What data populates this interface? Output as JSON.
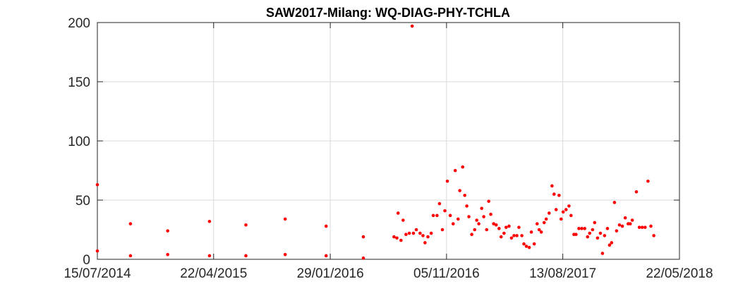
{
  "chart_data": {
    "type": "scatter",
    "title": "SAW2017-Milang: WQ-DIAG-PHY-TCHLA",
    "xlabel": "",
    "ylabel": "",
    "x_axis": "date",
    "xlim": [
      "2014-07-15",
      "2018-05-22"
    ],
    "ylim": [
      0,
      200
    ],
    "x_ticks": [
      "2014-07-15",
      "2015-04-22",
      "2016-01-29",
      "2016-11-05",
      "2017-08-13",
      "2018-05-22"
    ],
    "x_tick_labels": [
      "15/07/2014",
      "22/04/2015",
      "29/01/2016",
      "05/11/2016",
      "13/08/2017",
      "22/05/2018"
    ],
    "y_ticks": [
      0,
      50,
      100,
      150,
      200
    ],
    "y_tick_labels": [
      "0",
      "50",
      "100",
      "150",
      "200"
    ],
    "grid": true,
    "marker_color": "#ff0000",
    "series": [
      {
        "points": [
          [
            "2014-07-15",
            63
          ],
          [
            "2014-07-15",
            7
          ],
          [
            "2014-10-03",
            30
          ],
          [
            "2014-10-03",
            3
          ],
          [
            "2015-01-01",
            24
          ],
          [
            "2015-01-01",
            4
          ],
          [
            "2015-04-12",
            32
          ],
          [
            "2015-04-12",
            3
          ],
          [
            "2015-07-09",
            29
          ],
          [
            "2015-07-09",
            3
          ],
          [
            "2015-10-12",
            34
          ],
          [
            "2015-10-12",
            4
          ],
          [
            "2016-01-19",
            28
          ],
          [
            "2016-01-19",
            3
          ],
          [
            "2016-04-18",
            19
          ],
          [
            "2016-04-18",
            1
          ],
          [
            "2016-07-01",
            19
          ],
          [
            "2016-07-08",
            18
          ],
          [
            "2016-07-11",
            39
          ],
          [
            "2016-07-18",
            16
          ],
          [
            "2016-07-23",
            33
          ],
          [
            "2016-07-30",
            21
          ],
          [
            "2016-08-07",
            22
          ],
          [
            "2016-08-14",
            197
          ],
          [
            "2016-08-17",
            22
          ],
          [
            "2016-08-24",
            25
          ],
          [
            "2016-09-02",
            22
          ],
          [
            "2016-09-09",
            20
          ],
          [
            "2016-09-14",
            14
          ],
          [
            "2016-09-21",
            19
          ],
          [
            "2016-09-29",
            22
          ],
          [
            "2016-10-04",
            37
          ],
          [
            "2016-10-13",
            37
          ],
          [
            "2016-10-19",
            47
          ],
          [
            "2016-10-26",
            25
          ],
          [
            "2016-11-01",
            41
          ],
          [
            "2016-11-07",
            66
          ],
          [
            "2016-11-14",
            37
          ],
          [
            "2016-11-21",
            30
          ],
          [
            "2016-11-26",
            75
          ],
          [
            "2016-12-03",
            34
          ],
          [
            "2016-12-07",
            58
          ],
          [
            "2016-12-14",
            78
          ],
          [
            "2016-12-19",
            54
          ],
          [
            "2016-12-24",
            45
          ],
          [
            "2016-12-29",
            36
          ],
          [
            "2017-01-05",
            21
          ],
          [
            "2017-01-12",
            25
          ],
          [
            "2017-01-17",
            33
          ],
          [
            "2017-01-22",
            30
          ],
          [
            "2017-01-29",
            43
          ],
          [
            "2017-02-03",
            36
          ],
          [
            "2017-02-10",
            25
          ],
          [
            "2017-02-15",
            49
          ],
          [
            "2017-02-20",
            38
          ],
          [
            "2017-02-27",
            30
          ],
          [
            "2017-03-05",
            29
          ],
          [
            "2017-03-12",
            26
          ],
          [
            "2017-03-17",
            19
          ],
          [
            "2017-03-24",
            22
          ],
          [
            "2017-03-29",
            27
          ],
          [
            "2017-04-05",
            28
          ],
          [
            "2017-04-11",
            18
          ],
          [
            "2017-04-17",
            20
          ],
          [
            "2017-04-24",
            20
          ],
          [
            "2017-04-29",
            27
          ],
          [
            "2017-05-06",
            20
          ],
          [
            "2017-05-11",
            13
          ],
          [
            "2017-05-17",
            11
          ],
          [
            "2017-05-24",
            10
          ],
          [
            "2017-05-29",
            23
          ],
          [
            "2017-06-05",
            13
          ],
          [
            "2017-06-12",
            30
          ],
          [
            "2017-06-17",
            25
          ],
          [
            "2017-06-22",
            23
          ],
          [
            "2017-06-29",
            31
          ],
          [
            "2017-07-04",
            34
          ],
          [
            "2017-07-11",
            39
          ],
          [
            "2017-07-18",
            62
          ],
          [
            "2017-07-23",
            55
          ],
          [
            "2017-07-28",
            42
          ],
          [
            "2017-08-04",
            54
          ],
          [
            "2017-08-09",
            34
          ],
          [
            "2017-08-14",
            40
          ],
          [
            "2017-08-21",
            42
          ],
          [
            "2017-08-28",
            45
          ],
          [
            "2017-09-02",
            37
          ],
          [
            "2017-09-09",
            21
          ],
          [
            "2017-09-14",
            21
          ],
          [
            "2017-09-21",
            26
          ],
          [
            "2017-09-28",
            26
          ],
          [
            "2017-10-05",
            26
          ],
          [
            "2017-10-12",
            19
          ],
          [
            "2017-10-17",
            22
          ],
          [
            "2017-10-24",
            25
          ],
          [
            "2017-10-29",
            31
          ],
          [
            "2017-11-05",
            18
          ],
          [
            "2017-11-12",
            22
          ],
          [
            "2017-11-17",
            5
          ],
          [
            "2017-11-22",
            20
          ],
          [
            "2017-11-29",
            26
          ],
          [
            "2017-12-04",
            12
          ],
          [
            "2017-12-09",
            14
          ],
          [
            "2017-12-16",
            48
          ],
          [
            "2017-12-21",
            24
          ],
          [
            "2017-12-28",
            29
          ],
          [
            "2018-01-04",
            28
          ],
          [
            "2018-01-11",
            35
          ],
          [
            "2018-01-18",
            30
          ],
          [
            "2018-01-23",
            30
          ],
          [
            "2018-01-28",
            33
          ],
          [
            "2018-02-07",
            57
          ],
          [
            "2018-02-14",
            27
          ],
          [
            "2018-02-21",
            27
          ],
          [
            "2018-02-28",
            27
          ],
          [
            "2018-03-07",
            66
          ],
          [
            "2018-03-14",
            28
          ],
          [
            "2018-03-21",
            20
          ]
        ]
      }
    ]
  }
}
